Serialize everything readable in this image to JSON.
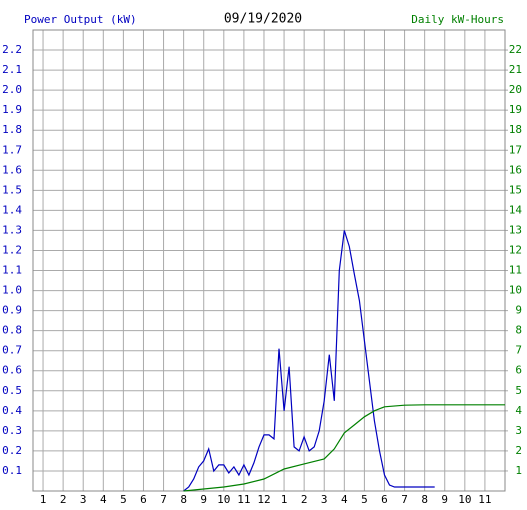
{
  "chart_data": {
    "type": "line",
    "title": "09/19/2020",
    "y_label": "Power Output (kW)",
    "y2_label": "Daily kW-Hours",
    "xlim": [
      0.5,
      24
    ],
    "ylim": [
      0,
      2.3
    ],
    "y2lim": [
      0,
      23
    ],
    "grid": true,
    "xticks": [
      1,
      2,
      3,
      4,
      5,
      6,
      7,
      8,
      9,
      10,
      11,
      12,
      {
        "value": 13,
        "label": "1"
      },
      {
        "value": 14,
        "label": "2"
      },
      {
        "value": 15,
        "label": "3"
      },
      {
        "value": 16,
        "label": "4"
      },
      {
        "value": 17,
        "label": "5"
      },
      {
        "value": 18,
        "label": "6"
      },
      {
        "value": 19,
        "label": "7"
      },
      {
        "value": 20,
        "label": "8"
      },
      {
        "value": 21,
        "label": "9"
      },
      {
        "value": 22,
        "label": "10"
      },
      {
        "value": 23,
        "label": "11"
      }
    ],
    "yticks": [
      0.1,
      0.2,
      0.3,
      0.4,
      0.5,
      0.6,
      0.7,
      0.8,
      0.9,
      {
        "value": 1,
        "label": "1.0"
      },
      1.1,
      1.2,
      1.3,
      1.4,
      1.5,
      1.6,
      1.7,
      1.8,
      1.9,
      {
        "value": 2,
        "label": "2.0"
      },
      2.1,
      2.2
    ],
    "y2ticks": [
      1,
      2,
      3,
      4,
      5,
      6,
      7,
      8,
      9,
      10,
      11,
      12,
      13,
      14,
      15,
      16,
      17,
      18,
      19,
      20,
      21,
      22
    ],
    "series": [
      {
        "name": "Power Output (kW)",
        "color": "#0000c0",
        "x": [
          8,
          8.25,
          8.5,
          8.75,
          9,
          9.25,
          9.5,
          9.75,
          10,
          10.25,
          10.5,
          10.75,
          11,
          11.25,
          11.5,
          11.75,
          12,
          12.25,
          12.5,
          12.75,
          13,
          13.25,
          13.5,
          13.75,
          14,
          14.25,
          14.5,
          14.75,
          15,
          15.25,
          15.5,
          15.75,
          16,
          16.25,
          16.5,
          16.75,
          17,
          17.25,
          17.5,
          17.75,
          18,
          18.25,
          18.5,
          18.75,
          19,
          19.25,
          19.5,
          19.75,
          20,
          20.25,
          20.5
        ],
        "values": [
          0,
          0.02,
          0.06,
          0.12,
          0.15,
          0.21,
          0.1,
          0.13,
          0.13,
          0.09,
          0.12,
          0.08,
          0.13,
          0.08,
          0.14,
          0.22,
          0.28,
          0.28,
          0.26,
          0.71,
          0.4,
          0.62,
          0.22,
          0.2,
          0.27,
          0.2,
          0.22,
          0.3,
          0.45,
          0.68,
          0.45,
          1.1,
          1.3,
          1.22,
          1.08,
          0.95,
          0.75,
          0.55,
          0.35,
          0.2,
          0.08,
          0.03,
          0.02,
          0.02,
          0.02,
          0.02,
          0.02,
          0.02,
          0.02,
          0.02,
          0.02
        ]
      },
      {
        "name": "Daily kW-Hours",
        "color": "#008000",
        "axis": "y2",
        "x": [
          8,
          9,
          10,
          11,
          12,
          13,
          14,
          15,
          15.5,
          16,
          16.5,
          17,
          17.5,
          18,
          19,
          20,
          21,
          22,
          23,
          24
        ],
        "values": [
          0,
          0.1,
          0.2,
          0.35,
          0.6,
          1.1,
          1.35,
          1.6,
          2.1,
          2.9,
          3.3,
          3.7,
          4.0,
          4.2,
          4.28,
          4.3,
          4.3,
          4.3,
          4.3,
          4.3
        ]
      }
    ]
  }
}
